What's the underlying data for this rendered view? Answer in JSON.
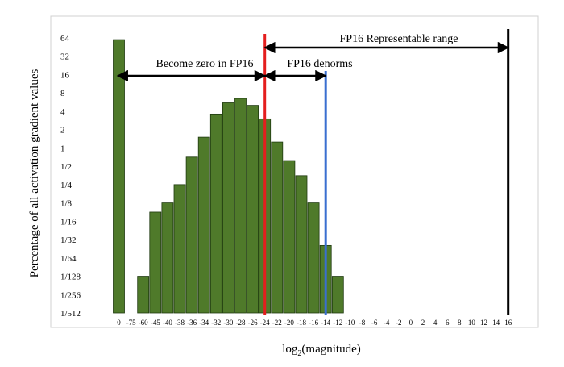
{
  "chart_data": {
    "type": "bar",
    "title": "",
    "xlabel": "log",
    "xlabel_sub": "2",
    "xlabel_tail": "(magnitude)",
    "ylabel": "Percentage of all activation gradient values",
    "y_scale": "log2",
    "y_tick_labels": [
      "64",
      "32",
      "16",
      "8",
      "4",
      "2",
      "1",
      "1/2",
      "1/4",
      "1/8",
      "1/16",
      "1/32",
      "1/64",
      "1/128",
      "1/256",
      "1/512"
    ],
    "y_tick_values": [
      64,
      32,
      16,
      8,
      4,
      2,
      1,
      0.5,
      0.25,
      0.125,
      0.0625,
      0.03125,
      0.015625,
      0.0078125,
      0.00390625,
      0.001953125
    ],
    "ylim": [
      0.001953125,
      128
    ],
    "grid": false,
    "categories": [
      "0",
      "-75",
      "-60",
      "-45",
      "-40",
      "-38",
      "-36",
      "-34",
      "-32",
      "-30",
      "-28",
      "-26",
      "-24",
      "-22",
      "-20",
      "-18",
      "-16",
      "-14",
      "-12",
      "-10",
      "-8",
      "-6",
      "-4",
      "-2",
      "0",
      "2",
      "4",
      "6",
      "8",
      "10",
      "12",
      "14",
      "16"
    ],
    "values": [
      60,
      0,
      0.00781,
      0.0884,
      0.125,
      0.25,
      0.707,
      1.5,
      3.6,
      5.5,
      6.5,
      5.0,
      3.0,
      1.25,
      0.62,
      0.35,
      0.125,
      0.025,
      0.00781,
      0,
      0,
      0,
      0,
      0,
      0,
      0,
      0,
      0,
      0,
      0,
      0,
      0,
      0
    ],
    "bar_color": "#4f7a2a",
    "bar_edge_color": "#1f3a10",
    "lines": [
      {
        "label": "-24",
        "color": "#e41e1e",
        "at_category": 12
      },
      {
        "label": "-14",
        "color": "#3a6fd0",
        "at_category": 17
      },
      {
        "label": "16",
        "color": "#000000",
        "at_category": 32
      }
    ],
    "annotations": [
      {
        "text": "FP16 Representable range",
        "from": 12,
        "to": 32
      },
      {
        "text": "Become zero in FP16",
        "from": 0,
        "to": 12
      },
      {
        "text": "FP16 denorms",
        "from": 12,
        "to": 17
      }
    ]
  }
}
